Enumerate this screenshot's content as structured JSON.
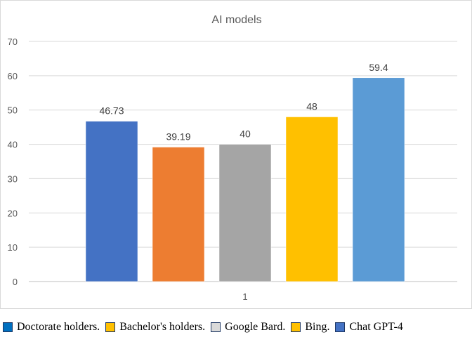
{
  "chart_data": {
    "type": "bar",
    "title": "AI models",
    "categories": [
      "1"
    ],
    "series": [
      {
        "name": "Doctorate holders.",
        "values": [
          46.73
        ],
        "color": "#4472c4"
      },
      {
        "name": "Bachelor's holders.",
        "values": [
          39.19
        ],
        "color": "#ed7d31"
      },
      {
        "name": "Google Bard.",
        "values": [
          40
        ],
        "color": "#a5a5a5"
      },
      {
        "name": "Bing.",
        "values": [
          48
        ],
        "color": "#ffc000"
      },
      {
        "name": "Chat GPT-4",
        "values": [
          59.4
        ],
        "color": "#5b9bd5"
      }
    ],
    "data_labels": [
      "46.73",
      "39.19",
      "40",
      "48",
      "59.4"
    ],
    "ylim": [
      0,
      70
    ],
    "yticks": [
      "0",
      "10",
      "20",
      "30",
      "40",
      "50",
      "60",
      "70"
    ],
    "grid": true,
    "legend_position": "bottom",
    "legend_swatch_colors": [
      "#0070c0",
      "#ffc000",
      "#d9d9d9",
      "#ffc000",
      "#4472c4"
    ]
  }
}
